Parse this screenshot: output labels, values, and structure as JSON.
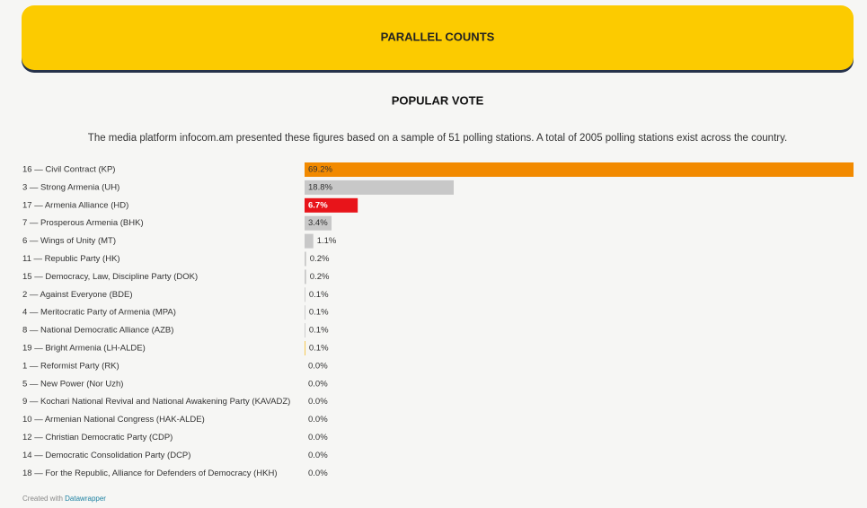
{
  "chart_data": {
    "type": "bar",
    "header": "PARALLEL COUNTS",
    "title": "POPULAR VOTE",
    "subtitle": "The media platform infocom.am presented these figures based on a sample of 51 polling stations. A total of 2005 polling stations exist across the country.",
    "categories": [
      "16 — Civil Contract (KP)",
      "3 — Strong Armenia (UH)",
      "17 — Armenia Alliance (HD)",
      "7 — Prosperous Armenia (BHK)",
      "6 — Wings of Unity (MT)",
      "11 — Republic Party (HK)",
      "15 — Democracy, Law, Discipline Party (DOK)",
      "2 — Against Everyone (BDE)",
      "4 — Meritocratic Party of Armenia (MPA)",
      "8 — National Democratic Alliance (AZB)",
      "19 — Bright Armenia (LH-ALDE)",
      "1 — Reformist Party (RK)",
      "5 — New Power (Nor Uzh)",
      "9 — Kochari National Revival and National Awakening Party (KAVADZ)",
      "10 — Armenian National Congress (HAK-ALDE)",
      "12 — Christian Democratic Party (CDP)",
      "14 — Democratic Consolidation Party (DCP)",
      "18 — For the Republic, Alliance for Defenders of Democracy (HKH)"
    ],
    "values": [
      69.2,
      18.8,
      6.7,
      3.4,
      1.1,
      0.2,
      0.2,
      0.1,
      0.1,
      0.1,
      0.1,
      0.0,
      0.0,
      0.0,
      0.0,
      0.0,
      0.0,
      0.0
    ],
    "value_labels": [
      "69.2%",
      "18.8%",
      "6.7%",
      "3.4%",
      "1.1%",
      "0.2%",
      "0.2%",
      "0.1%",
      "0.1%",
      "0.1%",
      "0.1%",
      "0.0%",
      "0.0%",
      "0.0%",
      "0.0%",
      "0.0%",
      "0.0%",
      "0.0%"
    ],
    "colors": [
      "#f28a00",
      "#c8c8c8",
      "#e8141a",
      "#c8c8c8",
      "#c8c8c8",
      "#c8c8c8",
      "#c8c8c8",
      "#c8c8c8",
      "#c8c8c8",
      "#c8c8c8",
      "#f5c542",
      "#c8c8c8",
      "#c8c8c8",
      "#c8c8c8",
      "#c8c8c8",
      "#c8c8c8",
      "#c8c8c8",
      "#c8c8c8"
    ]
  },
  "credit": {
    "text": "Created with",
    "link": "Datawrapper"
  }
}
